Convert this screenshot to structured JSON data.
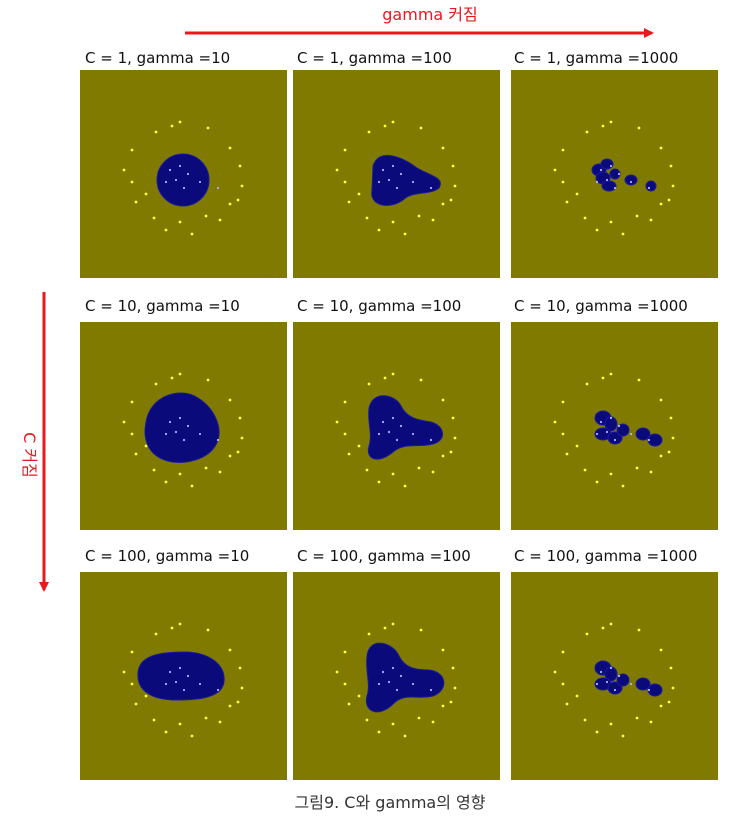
{
  "header": {
    "gamma_arrow_label": "gamma 커짐",
    "c_arrow_label": "C 커짐"
  },
  "grid": {
    "rows": [
      [
        "C = 1, gamma =10",
        "C = 1, gamma =100",
        "C = 1, gamma =1000"
      ],
      [
        "C = 10, gamma =10",
        "C = 10, gamma =100",
        "C = 10, gamma =1000"
      ],
      [
        "C = 100, gamma =10",
        "C = 100, gamma =100",
        "C = 100, gamma =1000"
      ]
    ]
  },
  "caption": "그림9. C와 gamma의 영향"
}
